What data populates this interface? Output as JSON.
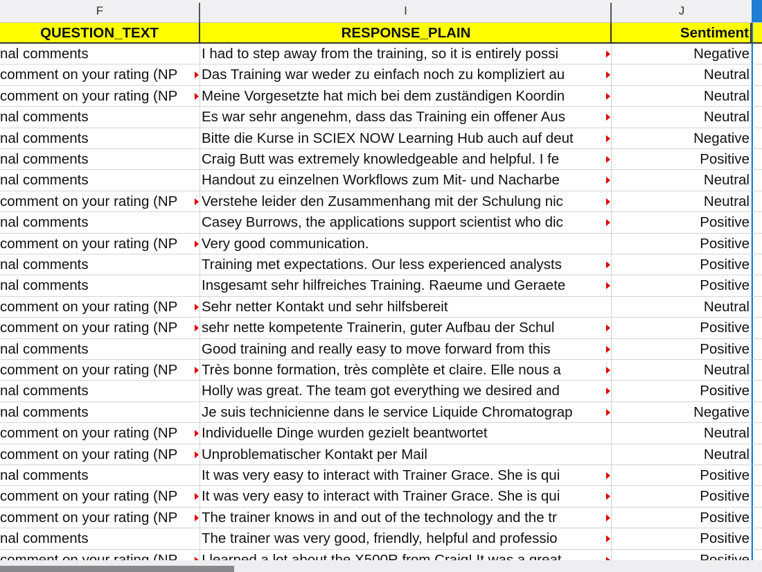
{
  "columns": {
    "F": "F",
    "I": "I",
    "J": "J"
  },
  "header": {
    "question_text": "QUESTION_TEXT",
    "response_plain": "RESPONSE_PLAIN",
    "sentiment": "Sentiment"
  },
  "rows": [
    {
      "q": "nal comments",
      "r": "I had to step away from the training, so it is entirely possi",
      "s": "Negative",
      "qt": false,
      "rt": true
    },
    {
      "q": "comment on your rating (NP",
      "r": "Das Training war weder zu einfach noch zu kompliziert au",
      "s": "Neutral",
      "qt": true,
      "rt": true
    },
    {
      "q": "comment on your rating (NP",
      "r": "Meine Vorgesetzte hat mich bei dem zuständigen Koordin",
      "s": "Neutral",
      "qt": true,
      "rt": true
    },
    {
      "q": "nal comments",
      "r": "Es war sehr angenehm, dass das Training ein offener Aus",
      "s": "Neutral",
      "qt": false,
      "rt": true
    },
    {
      "q": "nal comments",
      "r": "Bitte die Kurse in SCIEX NOW Learning Hub auch auf deut",
      "s": "Negative",
      "qt": false,
      "rt": true
    },
    {
      "q": "nal comments",
      "r": "Craig Butt was extremely knowledgeable and helpful. I fe",
      "s": "Positive",
      "qt": false,
      "rt": true
    },
    {
      "q": "nal comments",
      "r": "Handout zu einzelnen Workflows zum Mit- und Nacharbe",
      "s": "Neutral",
      "qt": false,
      "rt": true
    },
    {
      "q": "comment on your rating (NP",
      "r": "Verstehe leider den Zusammenhang mit der Schulung nic",
      "s": "Neutral",
      "qt": true,
      "rt": true
    },
    {
      "q": "nal comments",
      "r": "Casey Burrows, the applications support scientist who dic",
      "s": "Positive",
      "qt": false,
      "rt": true
    },
    {
      "q": "comment on your rating (NP",
      "r": "Very good communication.",
      "s": "Positive",
      "qt": true,
      "rt": false
    },
    {
      "q": "nal comments",
      "r": "Training met expectations. Our less experienced analysts",
      "s": "Positive",
      "qt": false,
      "rt": true
    },
    {
      "q": "nal comments",
      "r": "Insgesamt sehr hilfreiches Training. Raeume und Geraete",
      "s": "Positive",
      "qt": false,
      "rt": true
    },
    {
      "q": "comment on your rating (NP",
      "r": "Sehr netter Kontakt und sehr hilfsbereit",
      "s": "Neutral",
      "qt": true,
      "rt": false
    },
    {
      "q": "comment on your rating (NP",
      "r": "sehr nette kompetente Trainerin, guter Aufbau der Schul",
      "s": "Positive",
      "qt": true,
      "rt": true
    },
    {
      "q": "nal comments",
      "r": "Good training and really easy to move forward from this",
      "s": "Positive",
      "qt": false,
      "rt": true
    },
    {
      "q": "comment on your rating (NP",
      "r": "Très bonne formation, très complète et claire. Elle nous a",
      "s": "Neutral",
      "qt": true,
      "rt": true
    },
    {
      "q": "nal comments",
      "r": "Holly was great. The team got everything we desired and",
      "s": "Positive",
      "qt": false,
      "rt": true
    },
    {
      "q": "nal comments",
      "r": "Je suis technicienne dans le service Liquide Chromatograp",
      "s": "Negative",
      "qt": false,
      "rt": true
    },
    {
      "q": "comment on your rating (NP",
      "r": "Individuelle Dinge wurden gezielt beantwortet",
      "s": "Neutral",
      "qt": true,
      "rt": false
    },
    {
      "q": "comment on your rating (NP",
      "r": "Unproblematischer Kontakt per Mail",
      "s": "Neutral",
      "qt": true,
      "rt": false
    },
    {
      "q": "nal comments",
      "r": "It was very easy to interact with Trainer Grace. She is qui",
      "s": "Positive",
      "qt": false,
      "rt": true
    },
    {
      "q": "comment on your rating (NP",
      "r": "It was very easy to interact with Trainer Grace. She is qui",
      "s": "Positive",
      "qt": true,
      "rt": true
    },
    {
      "q": "comment on your rating (NP",
      "r": "The trainer knows in and out of the technology and the tr",
      "s": "Positive",
      "qt": true,
      "rt": true
    },
    {
      "q": "nal comments",
      "r": "The trainer was very good, friendly, helpful and professio",
      "s": "Positive",
      "qt": false,
      "rt": true
    },
    {
      "q": "comment on your rating (NP",
      "r": "I learned a lot about the X500R from Craig! It was a great",
      "s": "Positive",
      "qt": true,
      "rt": true
    }
  ]
}
